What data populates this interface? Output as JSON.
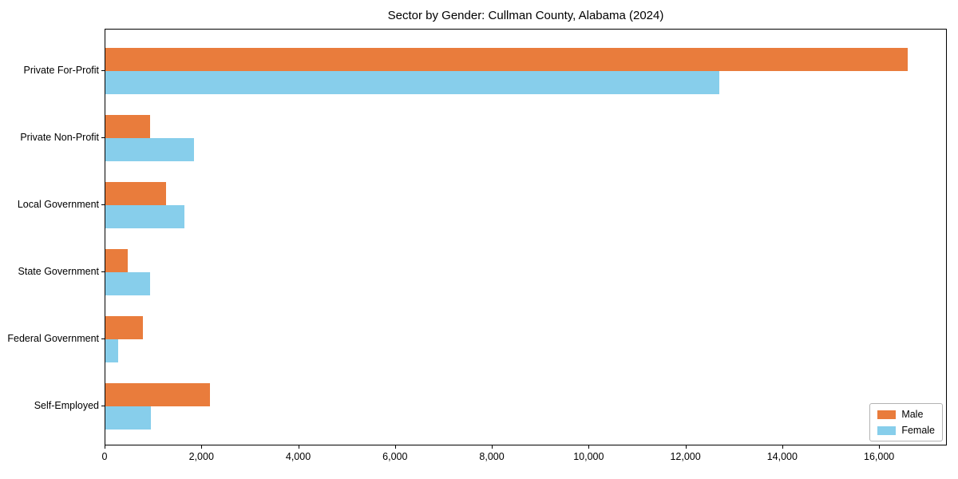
{
  "figure": {
    "title": "Sector by Gender: Cullman County, Alabama (2024)"
  },
  "legend": {
    "items": [
      {
        "label": "Male",
        "color": "#E97C3C"
      },
      {
        "label": "Female",
        "color": "#87CEEB"
      }
    ]
  },
  "chart_data": {
    "type": "bar",
    "orientation": "horizontal",
    "title": "Sector by Gender: Cullman County, Alabama (2024)",
    "categories": [
      "Private For-Profit",
      "Private Non-Profit",
      "Local Government",
      "State Government",
      "Federal Government",
      "Self-Employed"
    ],
    "series": [
      {
        "name": "Male",
        "color": "#E97C3C",
        "values": [
          16600,
          930,
          1260,
          460,
          780,
          2160
        ]
      },
      {
        "name": "Female",
        "color": "#87CEEB",
        "values": [
          12700,
          1830,
          1640,
          930,
          270,
          940
        ]
      }
    ],
    "xlabel": "",
    "ylabel": "",
    "xlim": [
      0,
      17400
    ],
    "x_ticks": [
      0,
      2000,
      4000,
      6000,
      8000,
      10000,
      12000,
      14000,
      16000
    ],
    "x_tick_labels": [
      "0",
      "2,000",
      "4,000",
      "6,000",
      "8,000",
      "10,000",
      "12,000",
      "14,000",
      "16,000"
    ],
    "grid": false,
    "legend_position": "lower right",
    "background": "#ffffff"
  }
}
